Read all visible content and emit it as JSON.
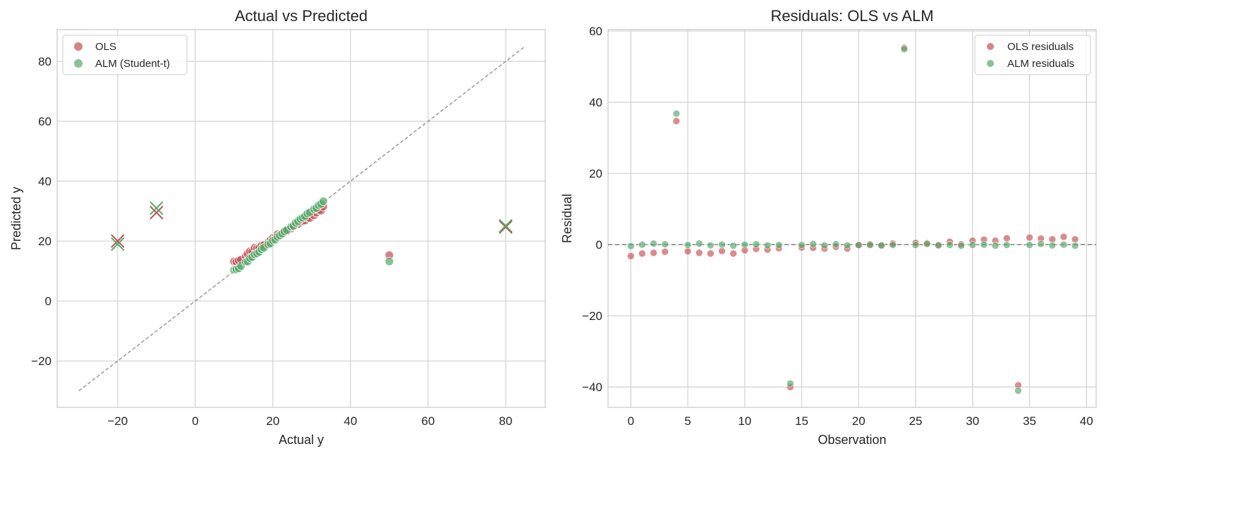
{
  "chart_data": [
    {
      "type": "scatter",
      "title": "Actual vs Predicted",
      "xlabel": "Actual y",
      "ylabel": "Predicted y",
      "xlim": [
        -35.6,
        90.2
      ],
      "ylim": [
        -35.5,
        90.6
      ],
      "xticks": [
        -20,
        0,
        20,
        40,
        60,
        80
      ],
      "yticks": [
        -20,
        0,
        20,
        40,
        60,
        80
      ],
      "grid": true,
      "legend_placement": "top-left",
      "reference_line": {
        "style": "dashed",
        "from": [
          -30,
          -30
        ],
        "to": [
          85,
          85
        ],
        "color": "#999999"
      },
      "x_marked_observations": [
        14,
        24,
        34
      ],
      "series": [
        {
          "name": "OLS",
          "color": "#c44e52"
        },
        {
          "name": "ALM (Student-t)",
          "color": "#55a868"
        }
      ]
    },
    {
      "type": "scatter",
      "title": "Residuals: OLS vs ALM",
      "xlabel": "Observation",
      "ylabel": "Residual",
      "xlim": [
        -2,
        40.85
      ],
      "ylim": [
        -45.7,
        60.4
      ],
      "xticks": [
        0,
        5,
        10,
        15,
        20,
        25,
        30,
        35,
        40
      ],
      "yticks": [
        -40,
        -20,
        0,
        20,
        40,
        60
      ],
      "grid": true,
      "legend_placement": "top-right",
      "reference_line": {
        "style": "dashed",
        "y": 0,
        "color": "#808080"
      },
      "actual_y": [
        10.0,
        10.6,
        11.2,
        11.8,
        50,
        13.0,
        13.5,
        14.1,
        14.7,
        15.3,
        15.9,
        16.5,
        17.1,
        17.7,
        -20,
        18.8,
        19.4,
        20.0,
        20.6,
        21.2,
        21.8,
        22.4,
        23.0,
        23.6,
        80,
        24.7,
        25.3,
        25.9,
        26.5,
        27.1,
        27.7,
        28.3,
        28.9,
        29.5,
        -10,
        30.6,
        31.2,
        31.8,
        32.4,
        33.0
      ],
      "series": [
        {
          "name": "OLS residuals",
          "color": "#c44e52",
          "values": [
            -3.2,
            -2.5,
            -2.3,
            -2.0,
            34.7,
            -1.9,
            -2.3,
            -2.5,
            -1.8,
            -2.5,
            -1.6,
            -1.2,
            -1.4,
            -1.0,
            -40.0,
            -0.8,
            -0.9,
            -1.1,
            -0.6,
            -1.1,
            -0.2,
            0.1,
            -0.3,
            0.3,
            55.3,
            0.5,
            0.4,
            -0.1,
            0.8,
            0.1,
            1.1,
            1.4,
            1.1,
            1.8,
            -39.5,
            2.0,
            1.7,
            1.5,
            2.2,
            1.5
          ]
        },
        {
          "name": "ALM residuals",
          "color": "#55a868",
          "values": [
            -0.4,
            0.0,
            0.3,
            0.1,
            36.8,
            -0.1,
            0.3,
            -0.2,
            0.0,
            -0.3,
            0.0,
            0.1,
            -0.2,
            -0.1,
            -39.0,
            -0.1,
            0.2,
            -0.2,
            0.1,
            -0.2,
            -0.1,
            -0.1,
            -0.2,
            -0.1,
            54.9,
            -0.1,
            0.2,
            -0.2,
            -0.1,
            -0.3,
            -0.1,
            0.0,
            -0.3,
            -0.1,
            -41.0,
            -0.1,
            0.2,
            -0.2,
            0.0,
            -0.3
          ]
        }
      ]
    }
  ]
}
